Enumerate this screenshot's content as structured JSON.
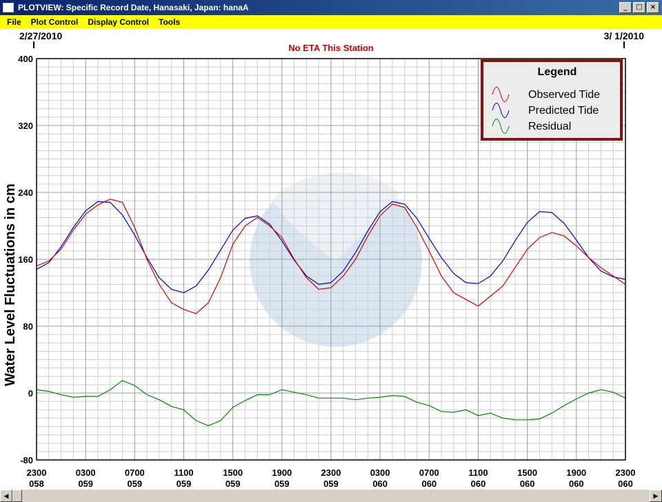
{
  "window": {
    "title": "PLOTVIEW: Specific Record Date, Hanasaki, Japan: hanaA",
    "minimize_label": "_",
    "maximize_label": "□",
    "close_label": "×"
  },
  "menu": {
    "items": [
      "File",
      "Plot Control",
      "Display Control",
      "Tools"
    ]
  },
  "header": {
    "start_date": "2/27/2010",
    "end_date": "3/ 1/2010",
    "eta_notice": "No ETA This Station"
  },
  "legend": {
    "title": "Legend",
    "entries": [
      {
        "label": "Observed Tide",
        "color": "#d40000"
      },
      {
        "label": "Predicted Tide",
        "color": "#0000cc"
      },
      {
        "label": "Residual",
        "color": "#008800"
      }
    ]
  },
  "chart_data": {
    "type": "line",
    "ylabel": "Water Level Fluctuations in cm",
    "ylim": [
      -80,
      400
    ],
    "yticks": [
      -80,
      0,
      80,
      160,
      240,
      320,
      400
    ],
    "xticks": [
      {
        "time": "2300",
        "day": "058"
      },
      {
        "time": "0300",
        "day": "059"
      },
      {
        "time": "0700",
        "day": "059"
      },
      {
        "time": "1100",
        "day": "059"
      },
      {
        "time": "1500",
        "day": "059"
      },
      {
        "time": "1900",
        "day": "059"
      },
      {
        "time": "2300",
        "day": "059"
      },
      {
        "time": "0300",
        "day": "060"
      },
      {
        "time": "0700",
        "day": "060"
      },
      {
        "time": "1100",
        "day": "060"
      },
      {
        "time": "1500",
        "day": "060"
      },
      {
        "time": "1900",
        "day": "060"
      },
      {
        "time": "2300",
        "day": "060"
      }
    ],
    "xlim_hours": [
      0,
      48
    ],
    "grid": true,
    "series": [
      {
        "name": "Predicted Tide",
        "color": "#0000cc",
        "x_hours": [
          0,
          1,
          2,
          3,
          4,
          5,
          6,
          7,
          8,
          9,
          10,
          11,
          12,
          13,
          14,
          15,
          16,
          17,
          18,
          19,
          20,
          21,
          22,
          23,
          24,
          25,
          26,
          27,
          28,
          29,
          30,
          31,
          32,
          33,
          34,
          35,
          36,
          37,
          38,
          39,
          40,
          41,
          42,
          43,
          44,
          45,
          46,
          47,
          48
        ],
        "values": [
          148,
          156,
          175,
          198,
          218,
          229,
          228,
          213,
          189,
          162,
          138,
          124,
          120,
          128,
          147,
          171,
          195,
          209,
          212,
          202,
          182,
          159,
          140,
          130,
          132,
          146,
          168,
          194,
          217,
          229,
          226,
          209,
          185,
          162,
          143,
          132,
          131,
          140,
          158,
          182,
          204,
          217,
          216,
          203,
          183,
          162,
          146,
          139,
          136
        ]
      },
      {
        "name": "Observed Tide",
        "color": "#d40000",
        "x_hours": [
          0,
          1,
          2,
          3,
          4,
          5,
          6,
          7,
          8,
          9,
          10,
          11,
          12,
          13,
          14,
          15,
          16,
          17,
          18,
          19,
          20,
          21,
          22,
          23,
          24,
          25,
          26,
          27,
          28,
          29,
          30,
          31,
          32,
          33,
          34,
          35,
          36,
          37,
          38,
          39,
          40,
          41,
          42,
          43,
          44,
          45,
          46,
          47,
          48
        ],
        "values": [
          152,
          158,
          172,
          195,
          214,
          225,
          232,
          228,
          198,
          160,
          130,
          108,
          100,
          95,
          108,
          138,
          178,
          200,
          210,
          200,
          186,
          160,
          138,
          124,
          126,
          140,
          160,
          188,
          212,
          226,
          222,
          198,
          170,
          140,
          120,
          112,
          104,
          116,
          128,
          150,
          172,
          186,
          192,
          188,
          176,
          162,
          150,
          140,
          130
        ]
      },
      {
        "name": "Residual",
        "color": "#008800",
        "x_hours": [
          0,
          1,
          2,
          3,
          4,
          5,
          6,
          7,
          8,
          9,
          10,
          11,
          12,
          13,
          14,
          15,
          16,
          17,
          18,
          19,
          20,
          21,
          22,
          23,
          24,
          25,
          26,
          27,
          28,
          29,
          30,
          31,
          32,
          33,
          34,
          35,
          36,
          37,
          38,
          39,
          40,
          41,
          42,
          43,
          44,
          45,
          46,
          47,
          48
        ],
        "values": [
          4,
          2,
          -2,
          -5,
          -4,
          -4,
          4,
          15,
          9,
          -2,
          -8,
          -16,
          -20,
          -33,
          -39,
          -33,
          -17,
          -9,
          -2,
          -2,
          4,
          1,
          -2,
          -6,
          -6,
          -6,
          -8,
          -6,
          -5,
          -3,
          -4,
          -11,
          -15,
          -22,
          -23,
          -20,
          -27,
          -24,
          -30,
          -32,
          -32,
          -31,
          -24,
          -15,
          -7,
          0,
          4,
          1,
          -6
        ]
      }
    ]
  }
}
